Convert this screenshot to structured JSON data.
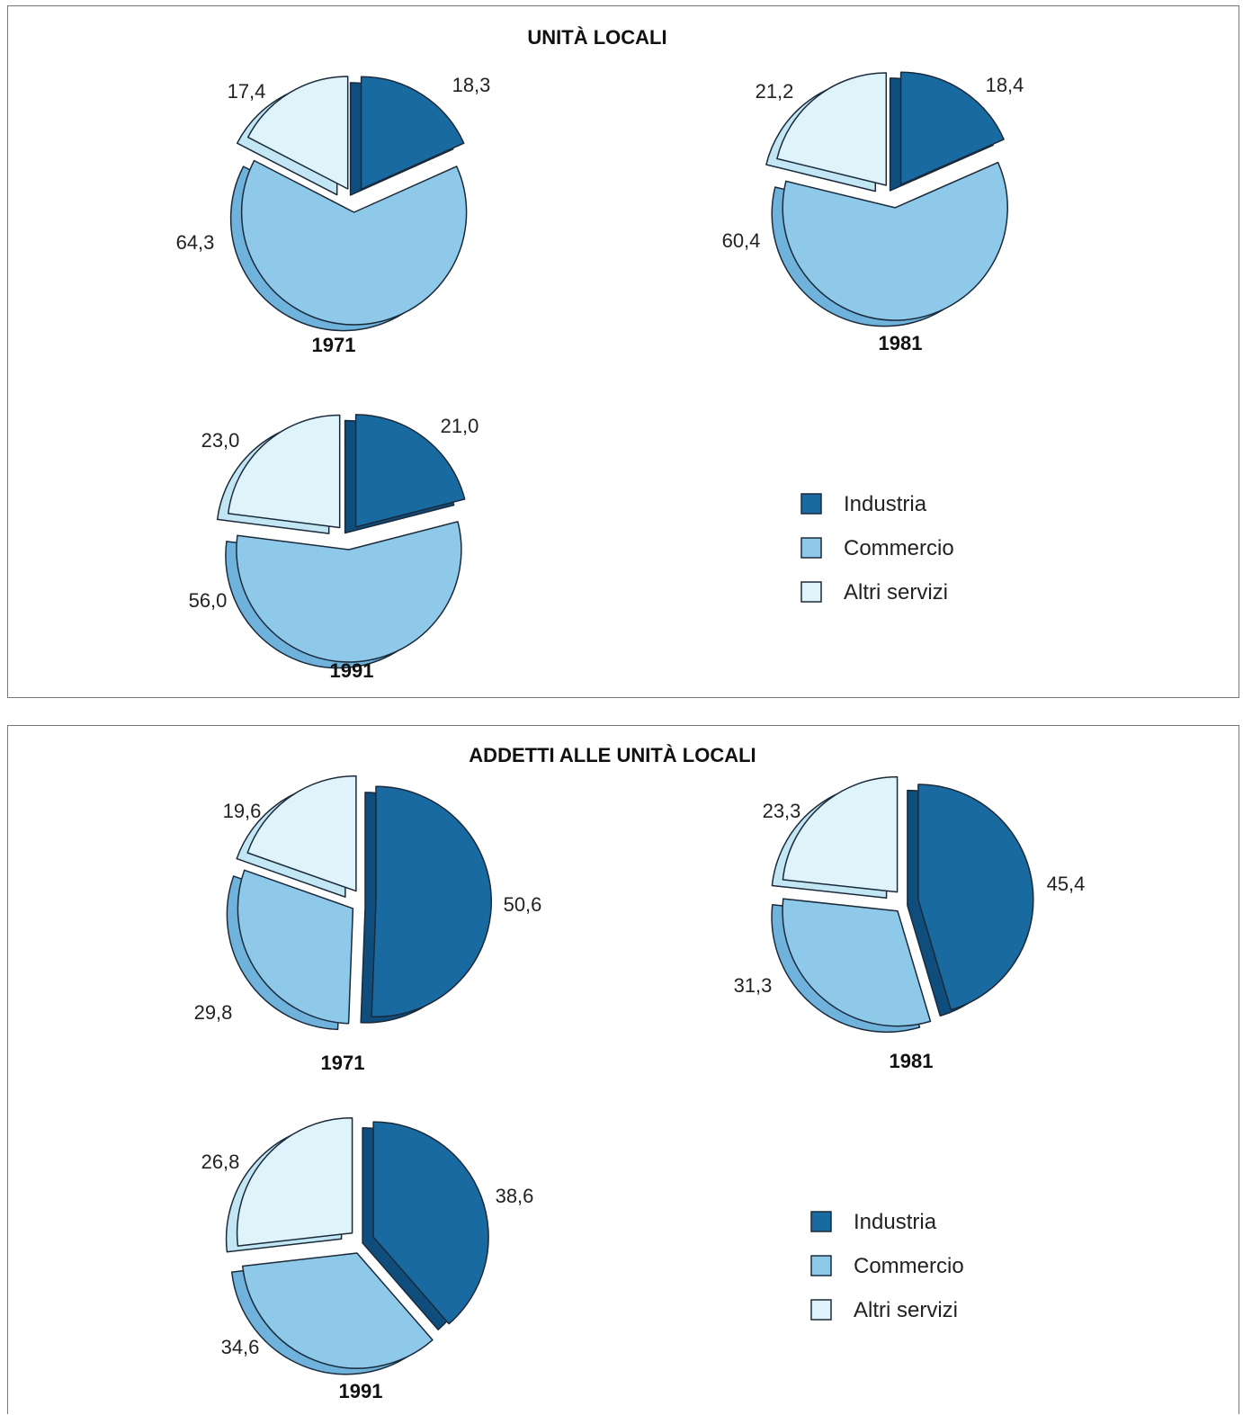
{
  "colors": {
    "industria": "#1a6aa2",
    "industria_side": "#0f4d7d",
    "commercio": "#8ec9ea",
    "commercio_side": "#6fb3dc",
    "altri": "#dff3fb",
    "altri_side": "#c3e6f5",
    "stroke": "#1b2a3a"
  },
  "chart_data": [
    {
      "type": "pie",
      "title": "UNITÀ LOCALI",
      "legend": [
        "Industria",
        "Commercio",
        "Altri servizi"
      ],
      "legend_position": "bottom-right",
      "pies": [
        {
          "year": "1971",
          "values": [
            18.3,
            64.3,
            17.4
          ],
          "labels": [
            "18,3",
            "64,3",
            "17,4"
          ]
        },
        {
          "year": "1981",
          "values": [
            18.4,
            60.4,
            21.2
          ],
          "labels": [
            "18,4",
            "60,4",
            "21,2"
          ]
        },
        {
          "year": "1991",
          "values": [
            21.0,
            56.0,
            23.0
          ],
          "labels": [
            "21,0",
            "56,0",
            "23,0"
          ]
        }
      ]
    },
    {
      "type": "pie",
      "title": "ADDETTI ALLE UNITÀ LOCALI",
      "legend": [
        "Industria",
        "Commercio",
        "Altri servizi"
      ],
      "legend_position": "bottom-right",
      "pies": [
        {
          "year": "1971",
          "values": [
            50.6,
            29.8,
            19.6
          ],
          "labels": [
            "50,6",
            "29,8",
            "19,6"
          ]
        },
        {
          "year": "1981",
          "values": [
            45.4,
            31.3,
            23.3
          ],
          "labels": [
            "45,4",
            "31,3",
            "23,3"
          ]
        },
        {
          "year": "1991",
          "values": [
            38.6,
            34.6,
            26.8
          ],
          "labels": [
            "38,6",
            "34,6",
            "26,8"
          ]
        }
      ]
    }
  ]
}
